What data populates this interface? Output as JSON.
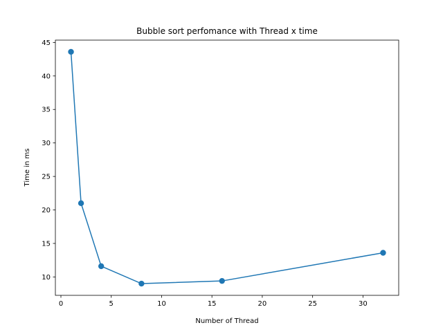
{
  "chart_data": {
    "type": "line",
    "title": "Bubble sort perfomance with Thread x time",
    "xlabel": "Number of Thread",
    "ylabel": "Time in ms",
    "xlim": [
      -0.55,
      33.55
    ],
    "ylim": [
      7.25,
      45.35
    ],
    "xticks": [
      0,
      5,
      10,
      15,
      20,
      25,
      30
    ],
    "yticks": [
      10,
      15,
      20,
      25,
      30,
      35,
      40,
      45
    ],
    "grid": false,
    "series": [
      {
        "color": "#1f77b4",
        "marker": "circle",
        "x": [
          1,
          2,
          4,
          8,
          16,
          32
        ],
        "y": [
          43.6,
          21.0,
          11.6,
          9.0,
          9.4,
          13.6
        ]
      }
    ]
  }
}
